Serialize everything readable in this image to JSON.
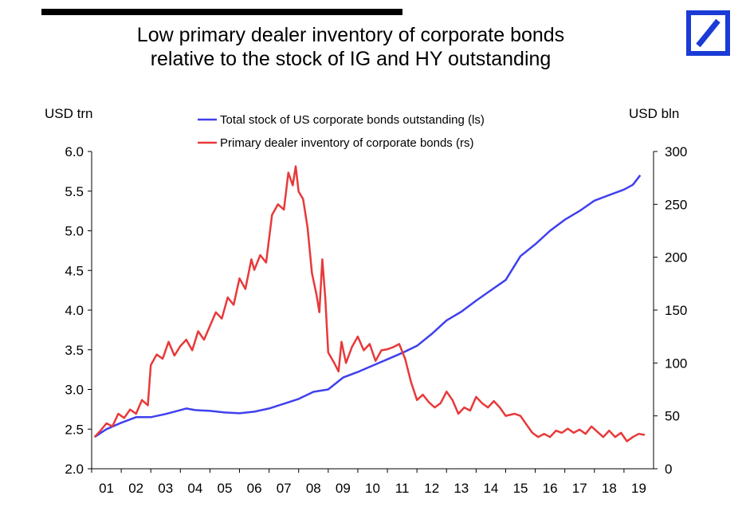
{
  "title_line1": "Low primary dealer inventory of corporate bonds",
  "title_line2": "relative to the stock of IG and HY outstanding",
  "logo": "deutsche-bank-logo",
  "colors": {
    "blue": "#4040ee",
    "red": "#e8393a",
    "logo_blue": "#1a3bd6"
  },
  "chart_data": {
    "type": "line",
    "ylabel_left": "USD trn",
    "ylabel_right": "USD bln",
    "ylim_left": [
      2.0,
      6.0
    ],
    "ylim_right": [
      0,
      300
    ],
    "yticks_left": [
      "2.0",
      "2.5",
      "3.0",
      "3.5",
      "4.0",
      "4.5",
      "5.0",
      "5.5",
      "6.0"
    ],
    "yticks_right": [
      "0",
      "50",
      "100",
      "150",
      "200",
      "250",
      "300"
    ],
    "xlim": [
      2001.0,
      2020.0
    ],
    "xticks": [
      "01",
      "02",
      "03",
      "04",
      "05",
      "06",
      "07",
      "08",
      "09",
      "10",
      "11",
      "12",
      "13",
      "14",
      "15",
      "16",
      "17",
      "18",
      "19"
    ],
    "legend_position": "top-center",
    "series": [
      {
        "name": "Total stock of US corporate bonds outstanding (ls)",
        "axis": "left",
        "color": "#4040ee",
        "points": [
          [
            2001.1,
            2.4
          ],
          [
            2001.5,
            2.5
          ],
          [
            2002.0,
            2.58
          ],
          [
            2002.5,
            2.65
          ],
          [
            2003.0,
            2.65
          ],
          [
            2003.5,
            2.69
          ],
          [
            2004.0,
            2.74
          ],
          [
            2004.2,
            2.76
          ],
          [
            2004.5,
            2.74
          ],
          [
            2005.0,
            2.73
          ],
          [
            2005.5,
            2.71
          ],
          [
            2006.0,
            2.7
          ],
          [
            2006.5,
            2.72
          ],
          [
            2007.0,
            2.76
          ],
          [
            2007.5,
            2.82
          ],
          [
            2008.0,
            2.88
          ],
          [
            2008.5,
            2.97
          ],
          [
            2009.0,
            3.0
          ],
          [
            2009.5,
            3.15
          ],
          [
            2010.0,
            3.22
          ],
          [
            2010.5,
            3.3
          ],
          [
            2011.0,
            3.38
          ],
          [
            2011.5,
            3.46
          ],
          [
            2012.0,
            3.55
          ],
          [
            2012.5,
            3.7
          ],
          [
            2013.0,
            3.87
          ],
          [
            2013.5,
            3.98
          ],
          [
            2014.0,
            4.12
          ],
          [
            2014.5,
            4.25
          ],
          [
            2015.0,
            4.38
          ],
          [
            2015.5,
            4.68
          ],
          [
            2016.0,
            4.83
          ],
          [
            2016.5,
            5.0
          ],
          [
            2017.0,
            5.14
          ],
          [
            2017.5,
            5.25
          ],
          [
            2018.0,
            5.38
          ],
          [
            2018.5,
            5.45
          ],
          [
            2019.0,
            5.52
          ],
          [
            2019.3,
            5.58
          ],
          [
            2019.55,
            5.7
          ]
        ]
      },
      {
        "name": "Primary dealer inventory of corporate bonds (rs)",
        "axis": "right",
        "color": "#e8393a",
        "points": [
          [
            2001.1,
            30
          ],
          [
            2001.3,
            36
          ],
          [
            2001.5,
            43
          ],
          [
            2001.7,
            40
          ],
          [
            2001.9,
            52
          ],
          [
            2002.1,
            48
          ],
          [
            2002.3,
            56
          ],
          [
            2002.5,
            52
          ],
          [
            2002.7,
            65
          ],
          [
            2002.9,
            60
          ],
          [
            2003.0,
            98
          ],
          [
            2003.2,
            108
          ],
          [
            2003.4,
            104
          ],
          [
            2003.6,
            120
          ],
          [
            2003.8,
            107
          ],
          [
            2004.0,
            116
          ],
          [
            2004.2,
            122
          ],
          [
            2004.4,
            112
          ],
          [
            2004.6,
            130
          ],
          [
            2004.8,
            122
          ],
          [
            2005.0,
            135
          ],
          [
            2005.2,
            148
          ],
          [
            2005.4,
            142
          ],
          [
            2005.6,
            162
          ],
          [
            2005.8,
            155
          ],
          [
            2006.0,
            180
          ],
          [
            2006.2,
            170
          ],
          [
            2006.4,
            198
          ],
          [
            2006.5,
            188
          ],
          [
            2006.7,
            202
          ],
          [
            2006.9,
            195
          ],
          [
            2007.1,
            240
          ],
          [
            2007.3,
            250
          ],
          [
            2007.5,
            245
          ],
          [
            2007.65,
            280
          ],
          [
            2007.8,
            268
          ],
          [
            2007.9,
            286
          ],
          [
            2008.0,
            262
          ],
          [
            2008.15,
            255
          ],
          [
            2008.3,
            228
          ],
          [
            2008.45,
            185
          ],
          [
            2008.6,
            165
          ],
          [
            2008.7,
            148
          ],
          [
            2008.8,
            198
          ],
          [
            2008.9,
            162
          ],
          [
            2009.0,
            110
          ],
          [
            2009.2,
            100
          ],
          [
            2009.35,
            92
          ],
          [
            2009.45,
            120
          ],
          [
            2009.6,
            100
          ],
          [
            2009.8,
            115
          ],
          [
            2010.0,
            125
          ],
          [
            2010.2,
            112
          ],
          [
            2010.4,
            118
          ],
          [
            2010.6,
            102
          ],
          [
            2010.8,
            112
          ],
          [
            2011.0,
            113
          ],
          [
            2011.2,
            115
          ],
          [
            2011.4,
            118
          ],
          [
            2011.6,
            104
          ],
          [
            2011.8,
            82
          ],
          [
            2012.0,
            65
          ],
          [
            2012.2,
            70
          ],
          [
            2012.4,
            63
          ],
          [
            2012.6,
            58
          ],
          [
            2012.8,
            62
          ],
          [
            2013.0,
            73
          ],
          [
            2013.2,
            65
          ],
          [
            2013.4,
            52
          ],
          [
            2013.6,
            58
          ],
          [
            2013.8,
            55
          ],
          [
            2014.0,
            68
          ],
          [
            2014.2,
            62
          ],
          [
            2014.4,
            58
          ],
          [
            2014.6,
            64
          ],
          [
            2014.8,
            58
          ],
          [
            2015.0,
            50
          ],
          [
            2015.3,
            52
          ],
          [
            2015.5,
            50
          ],
          [
            2015.7,
            42
          ],
          [
            2015.9,
            34
          ],
          [
            2016.1,
            30
          ],
          [
            2016.3,
            33
          ],
          [
            2016.5,
            30
          ],
          [
            2016.7,
            36
          ],
          [
            2016.9,
            34
          ],
          [
            2017.1,
            38
          ],
          [
            2017.3,
            34
          ],
          [
            2017.5,
            37
          ],
          [
            2017.7,
            33
          ],
          [
            2017.9,
            40
          ],
          [
            2018.1,
            35
          ],
          [
            2018.3,
            30
          ],
          [
            2018.5,
            36
          ],
          [
            2018.7,
            30
          ],
          [
            2018.9,
            34
          ],
          [
            2019.1,
            26
          ],
          [
            2019.3,
            30
          ],
          [
            2019.5,
            33
          ],
          [
            2019.7,
            32
          ]
        ]
      }
    ]
  }
}
